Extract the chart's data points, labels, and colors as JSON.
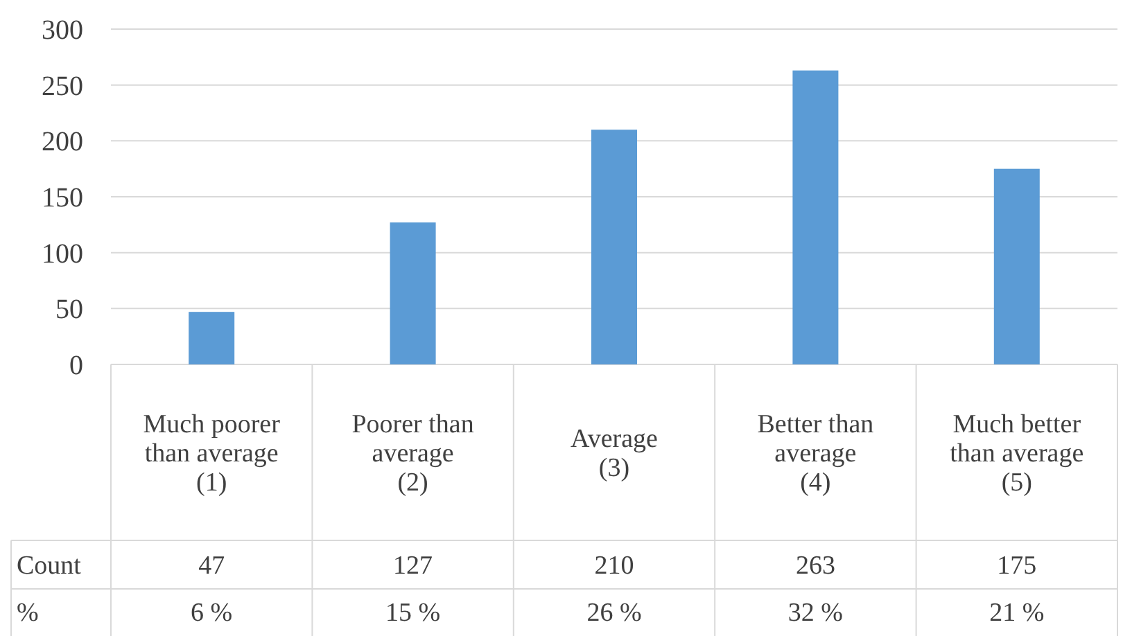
{
  "chart_data": {
    "type": "bar",
    "categories": [
      "Much poorer than average (1)",
      "Poorer than average (2)",
      "Average (3)",
      "Better than average (4)",
      "Much better than average (5)"
    ],
    "series": [
      {
        "name": "Count",
        "color": "#5b9bd5",
        "values": [
          47,
          127,
          210,
          263,
          175
        ]
      }
    ],
    "data_labels": true,
    "annotations": [
      "%",
      "6 %",
      "15 %",
      "26 %",
      "32 %",
      "21 %"
    ],
    "ylim": [
      0,
      300
    ],
    "yticks": [
      0,
      50,
      100,
      150,
      200,
      250,
      300
    ],
    "grid": "y"
  }
}
